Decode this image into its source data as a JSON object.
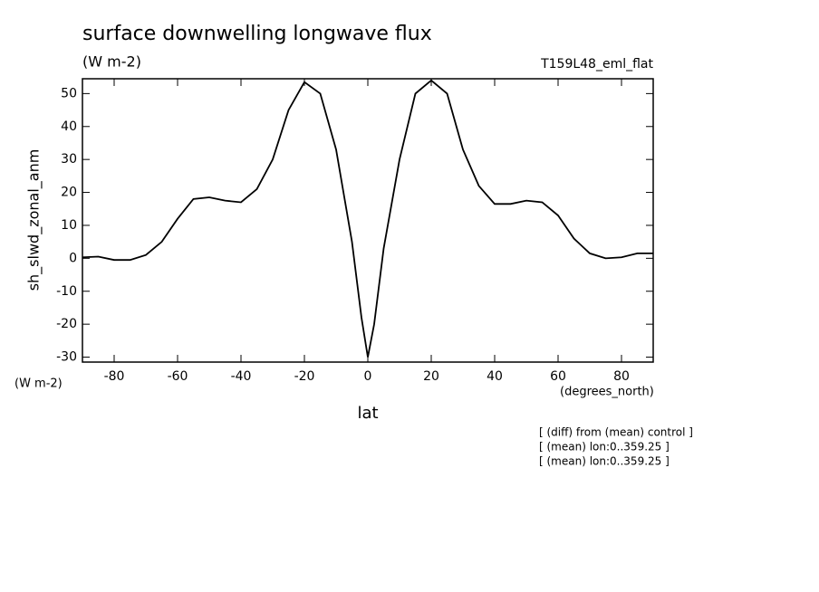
{
  "chart_data": {
    "type": "line",
    "title": "surface downwelling longwave flux",
    "subtitle": "(W m-2)",
    "run_label": "T159L48_eml_flat",
    "y_axis_label": "sh_slwd_zonal_anm",
    "y_units": "(W m-2)",
    "x_units": "(degrees_north)",
    "x_axis_label": "lat",
    "notes": [
      "[ (diff) from (mean) control ]",
      "[ (mean) lon:0..359.25 ]",
      "[ (mean) lon:0..359.25 ]"
    ],
    "x": [
      -90,
      -85,
      -80,
      -75,
      -70,
      -65,
      -60,
      -55,
      -50,
      -45,
      -40,
      -35,
      -30,
      -25,
      -20,
      -15,
      -10,
      -5,
      -2,
      0,
      2,
      5,
      10,
      15,
      20,
      25,
      30,
      35,
      40,
      45,
      50,
      55,
      60,
      65,
      70,
      75,
      80,
      85,
      90
    ],
    "series": [
      {
        "color": "#000000",
        "values": [
          0.3,
          0.5,
          -0.5,
          -0.5,
          1,
          5,
          12,
          18,
          18.5,
          17.5,
          17,
          21,
          30,
          45,
          53.5,
          50,
          33,
          5,
          -18,
          -30,
          -20,
          3,
          30,
          50,
          54,
          50,
          33,
          22,
          16.5,
          16.5,
          17.5,
          17,
          13,
          6,
          1.5,
          0,
          0.3,
          1.5,
          1.5
        ]
      }
    ],
    "xlim": [
      -90,
      90
    ],
    "xticks": [
      -80,
      -60,
      -40,
      -20,
      0,
      20,
      40,
      60,
      80
    ],
    "ylim": [
      -31.5,
      54.5
    ],
    "yticks": [
      -30,
      -20,
      -10,
      0,
      10,
      20,
      30,
      40,
      50
    ]
  }
}
